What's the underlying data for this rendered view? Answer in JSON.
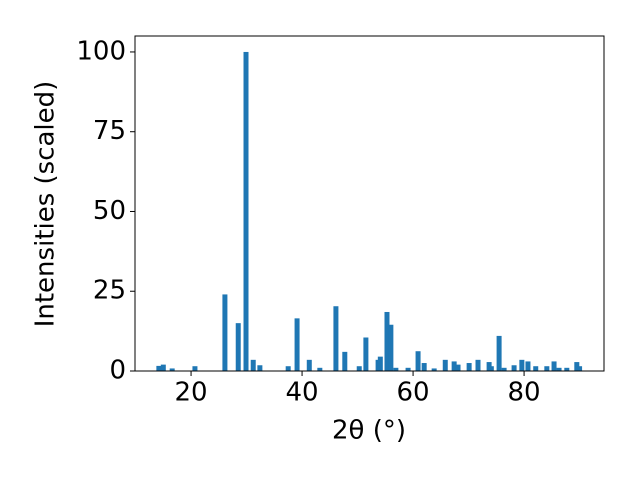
{
  "chart_data": {
    "type": "bar",
    "xlabel": "2θ (°)",
    "ylabel": "Intensities (scaled)",
    "x": [
      14.2,
      15.0,
      16.6,
      20.7,
      26.1,
      28.5,
      29.9,
      31.2,
      32.4,
      37.5,
      39.1,
      41.3,
      43.2,
      46.1,
      47.7,
      50.3,
      51.5,
      53.7,
      54.1,
      55.3,
      56.0,
      56.9,
      59.1,
      60.9,
      62.0,
      63.8,
      65.8,
      67.4,
      68.1,
      70.1,
      71.7,
      73.7,
      74.1,
      75.5,
      76.4,
      78.2,
      79.6,
      80.7,
      82.1,
      84.1,
      85.4,
      86.3,
      87.7,
      89.5,
      90.0
    ],
    "values": [
      1.6,
      2,
      0.8,
      1.5,
      24,
      15,
      100,
      3.5,
      1.8,
      1.5,
      16.5,
      3.5,
      1,
      20.3,
      6,
      1.5,
      10.5,
      3.5,
      4.5,
      18.5,
      14.5,
      1,
      1,
      6.2,
      2.5,
      0.8,
      3.5,
      3,
      2,
      2.5,
      3.5,
      2.8,
      1.5,
      11,
      1,
      1.8,
      3.5,
      3,
      1.5,
      1.5,
      3,
      1,
      1,
      2.8,
      1.5
    ],
    "color": "#1f77b4",
    "xlim": [
      9.9,
      94.4
    ],
    "xticks": [
      20,
      40,
      60,
      80
    ],
    "ylim": [
      0,
      105
    ],
    "yticks": [
      0,
      25,
      50,
      75,
      100
    ],
    "grid": false
  }
}
